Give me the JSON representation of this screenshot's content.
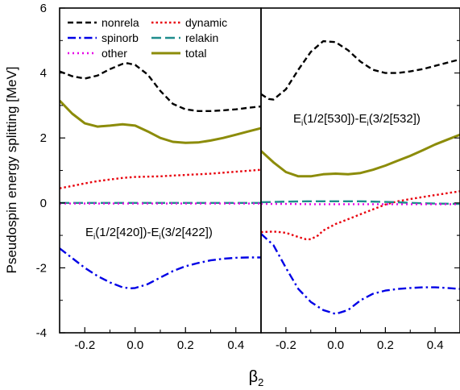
{
  "figure": {
    "ylabel": "Pseudospin energy splitting [MeV]",
    "xlabel": "β",
    "xlabel_sub": "2"
  },
  "legend": [
    {
      "name": "nonrela",
      "color": "#000000",
      "dash": "dash"
    },
    {
      "name": "dynamic",
      "color": "#e8000b",
      "dash": "dot"
    },
    {
      "name": "spinorb",
      "color": "#0000e6",
      "dash": "dashdot"
    },
    {
      "name": "relakin",
      "color": "#1f8c8c",
      "dash": "longdash"
    },
    {
      "name": "other",
      "color": "#e600e6",
      "dash": "shortdot"
    },
    {
      "name": "total",
      "color": "#8c8c0a",
      "dash": "solid"
    }
  ],
  "chart_data": [
    {
      "type": "line",
      "panel": "left",
      "annotation": {
        "main": "E",
        "sub1": "i",
        "mid": "(1/2[420])-E",
        "sub2": "i",
        "end": "(3/2[422])"
      },
      "xlim": [
        -0.3,
        0.5
      ],
      "ylim": [
        -4,
        6
      ],
      "xticks": [
        -0.2,
        0.0,
        0.2,
        0.4
      ],
      "xtick_labels": [
        "-0.2",
        "0.0",
        "0.2",
        "0.4"
      ],
      "yticks": [
        -4,
        -2,
        0,
        2,
        4,
        6
      ],
      "ytick_labels": [
        "-4",
        "-2",
        "0",
        "2",
        "4",
        "6"
      ],
      "series": [
        {
          "name": "nonrela",
          "x": [
            -0.3,
            -0.25,
            -0.2,
            -0.15,
            -0.1,
            -0.05,
            -0.03,
            0.0,
            0.05,
            0.1,
            0.15,
            0.2,
            0.25,
            0.3,
            0.35,
            0.4,
            0.45,
            0.5
          ],
          "y": [
            4.05,
            3.9,
            3.83,
            3.92,
            4.12,
            4.28,
            4.3,
            4.25,
            3.95,
            3.45,
            3.05,
            2.88,
            2.83,
            2.83,
            2.85,
            2.88,
            2.93,
            2.97
          ]
        },
        {
          "name": "total",
          "x": [
            -0.3,
            -0.25,
            -0.2,
            -0.15,
            -0.1,
            -0.05,
            0.0,
            0.05,
            0.1,
            0.15,
            0.2,
            0.25,
            0.3,
            0.35,
            0.4,
            0.45,
            0.5
          ],
          "y": [
            3.15,
            2.75,
            2.45,
            2.35,
            2.38,
            2.42,
            2.38,
            2.2,
            2.0,
            1.88,
            1.85,
            1.86,
            1.92,
            2.0,
            2.1,
            2.2,
            2.3
          ]
        },
        {
          "name": "dynamic",
          "x": [
            -0.3,
            -0.25,
            -0.2,
            -0.15,
            -0.1,
            -0.05,
            0.0,
            0.05,
            0.1,
            0.15,
            0.2,
            0.25,
            0.3,
            0.35,
            0.4,
            0.45,
            0.5
          ],
          "y": [
            0.45,
            0.52,
            0.6,
            0.67,
            0.72,
            0.77,
            0.8,
            0.81,
            0.82,
            0.84,
            0.86,
            0.88,
            0.9,
            0.93,
            0.96,
            0.99,
            1.02
          ]
        },
        {
          "name": "relakin",
          "x": [
            -0.3,
            -0.2,
            -0.1,
            0.0,
            0.1,
            0.2,
            0.3,
            0.4,
            0.5
          ],
          "y": [
            0.0,
            0.0,
            0.0,
            0.0,
            0.0,
            0.0,
            0.0,
            0.0,
            0.0
          ]
        },
        {
          "name": "other",
          "x": [
            -0.3,
            -0.2,
            -0.1,
            0.0,
            0.1,
            0.2,
            0.3,
            0.4,
            0.5
          ],
          "y": [
            -0.02,
            -0.02,
            -0.02,
            -0.02,
            -0.02,
            -0.02,
            -0.02,
            -0.02,
            -0.02
          ]
        },
        {
          "name": "spinorb",
          "x": [
            -0.3,
            -0.25,
            -0.2,
            -0.15,
            -0.1,
            -0.05,
            -0.02,
            0.0,
            0.05,
            0.1,
            0.15,
            0.2,
            0.25,
            0.3,
            0.35,
            0.4,
            0.45,
            0.5
          ],
          "y": [
            -1.4,
            -1.7,
            -2.0,
            -2.25,
            -2.45,
            -2.6,
            -2.63,
            -2.62,
            -2.5,
            -2.3,
            -2.1,
            -1.95,
            -1.85,
            -1.77,
            -1.72,
            -1.69,
            -1.68,
            -1.68
          ]
        }
      ]
    },
    {
      "type": "line",
      "panel": "right",
      "annotation": {
        "main": "E",
        "sub1": "i",
        "mid": "(1/2[530])-E",
        "sub2": "i",
        "end": "(3/2[532])"
      },
      "xlim": [
        -0.3,
        0.5
      ],
      "ylim": [
        -4,
        6
      ],
      "xticks": [
        -0.2,
        0.0,
        0.2,
        0.4
      ],
      "xtick_labels": [
        "-0.2",
        "0.0",
        "0.2",
        "0.4"
      ],
      "series": [
        {
          "name": "nonrela",
          "x": [
            -0.3,
            -0.27,
            -0.25,
            -0.2,
            -0.15,
            -0.1,
            -0.05,
            0.0,
            0.05,
            0.1,
            0.15,
            0.2,
            0.25,
            0.3,
            0.35,
            0.4,
            0.45,
            0.5
          ],
          "y": [
            3.35,
            3.2,
            3.18,
            3.5,
            4.1,
            4.65,
            4.98,
            4.95,
            4.7,
            4.35,
            4.1,
            4.0,
            4.0,
            4.05,
            4.12,
            4.22,
            4.32,
            4.42
          ]
        },
        {
          "name": "total",
          "x": [
            -0.3,
            -0.25,
            -0.2,
            -0.15,
            -0.1,
            -0.05,
            0.0,
            0.05,
            0.1,
            0.15,
            0.2,
            0.25,
            0.3,
            0.35,
            0.4,
            0.45,
            0.5
          ],
          "y": [
            1.6,
            1.25,
            0.95,
            0.82,
            0.82,
            0.88,
            0.9,
            0.88,
            0.92,
            1.02,
            1.15,
            1.3,
            1.45,
            1.62,
            1.8,
            1.95,
            2.1
          ]
        },
        {
          "name": "dynamic",
          "x": [
            -0.3,
            -0.25,
            -0.2,
            -0.15,
            -0.12,
            -0.1,
            -0.07,
            -0.05,
            0.0,
            0.05,
            0.1,
            0.15,
            0.2,
            0.25,
            0.3,
            0.35,
            0.4,
            0.45,
            0.5
          ],
          "y": [
            -0.9,
            -0.88,
            -0.92,
            -1.05,
            -1.12,
            -1.12,
            -1.0,
            -0.85,
            -0.65,
            -0.5,
            -0.35,
            -0.2,
            -0.05,
            0.05,
            0.12,
            0.18,
            0.24,
            0.3,
            0.36
          ]
        },
        {
          "name": "relakin",
          "x": [
            -0.3,
            -0.2,
            -0.1,
            0.0,
            0.1,
            0.2,
            0.25,
            0.3,
            0.4,
            0.5
          ],
          "y": [
            0.02,
            0.04,
            0.05,
            0.05,
            0.05,
            0.03,
            0.02,
            0.0,
            -0.02,
            -0.03
          ]
        },
        {
          "name": "other",
          "x": [
            -0.3,
            -0.2,
            -0.1,
            0.0,
            0.1,
            0.2,
            0.3,
            0.4,
            0.5
          ],
          "y": [
            -0.03,
            -0.03,
            -0.04,
            -0.04,
            -0.04,
            -0.04,
            -0.04,
            -0.04,
            -0.04
          ]
        },
        {
          "name": "spinorb",
          "x": [
            -0.3,
            -0.25,
            -0.2,
            -0.15,
            -0.1,
            -0.05,
            0.0,
            0.05,
            0.1,
            0.15,
            0.2,
            0.25,
            0.3,
            0.35,
            0.4,
            0.45,
            0.5
          ],
          "y": [
            -0.95,
            -1.3,
            -2.0,
            -2.65,
            -3.05,
            -3.3,
            -3.42,
            -3.3,
            -3.0,
            -2.8,
            -2.7,
            -2.65,
            -2.62,
            -2.6,
            -2.6,
            -2.62,
            -2.65
          ]
        }
      ]
    }
  ]
}
